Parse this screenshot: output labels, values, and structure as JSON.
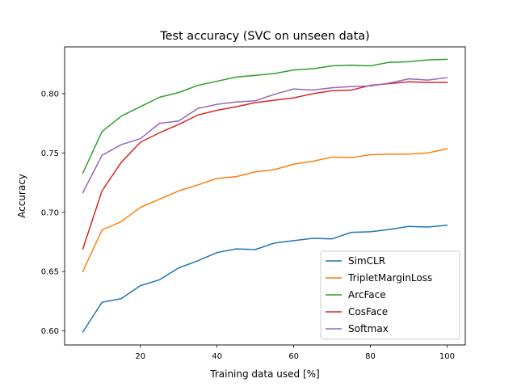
{
  "chart_data": {
    "type": "line",
    "title": "Test accuracy (SVC on unseen data)",
    "xlabel": "Training data used [%]",
    "ylabel": "Accuracy",
    "xlim": [
      0.25,
      104.75
    ],
    "ylim": [
      0.588,
      0.8395
    ],
    "xticks": [
      20,
      40,
      60,
      80,
      100
    ],
    "xtick_labels": [
      "20",
      "40",
      "60",
      "80",
      "100"
    ],
    "yticks": [
      0.6,
      0.65,
      0.7,
      0.75,
      0.8
    ],
    "ytick_labels": [
      "0.60",
      "0.65",
      "0.70",
      "0.75",
      "0.80"
    ],
    "grid": false,
    "legend_position": "bottom-right",
    "x": [
      5,
      10,
      15,
      20,
      25,
      30,
      35,
      40,
      45,
      50,
      55,
      60,
      65,
      70,
      75,
      80,
      85,
      90,
      95,
      100
    ],
    "series": [
      {
        "name": "SimCLR",
        "color": "#1f77b4",
        "values": [
          0.599,
          0.624,
          0.627,
          0.638,
          0.643,
          0.653,
          0.659,
          0.666,
          0.669,
          0.6685,
          0.674,
          0.676,
          0.678,
          0.6775,
          0.683,
          0.6835,
          0.6855,
          0.688,
          0.6875,
          0.689
        ]
      },
      {
        "name": "TripletMarginLoss",
        "color": "#ff7f0e",
        "values": [
          0.65,
          0.685,
          0.692,
          0.704,
          0.711,
          0.718,
          0.723,
          0.7285,
          0.73,
          0.734,
          0.736,
          0.7405,
          0.743,
          0.7465,
          0.746,
          0.7485,
          0.749,
          0.749,
          0.75,
          0.7535
        ]
      },
      {
        "name": "ArcFace",
        "color": "#2ca02c",
        "values": [
          0.733,
          0.768,
          0.781,
          0.789,
          0.797,
          0.801,
          0.807,
          0.8105,
          0.814,
          0.8155,
          0.817,
          0.82,
          0.821,
          0.8235,
          0.824,
          0.8235,
          0.8265,
          0.827,
          0.8285,
          0.829
        ]
      },
      {
        "name": "CosFace",
        "color": "#d62728",
        "values": [
          0.669,
          0.718,
          0.742,
          0.759,
          0.767,
          0.774,
          0.782,
          0.786,
          0.789,
          0.7925,
          0.7945,
          0.7965,
          0.8,
          0.8025,
          0.803,
          0.807,
          0.8085,
          0.81,
          0.8095,
          0.8095
        ]
      },
      {
        "name": "Softmax",
        "color": "#9467bd",
        "values": [
          0.7165,
          0.748,
          0.757,
          0.762,
          0.775,
          0.777,
          0.7875,
          0.791,
          0.793,
          0.794,
          0.7995,
          0.804,
          0.803,
          0.805,
          0.806,
          0.8065,
          0.809,
          0.8125,
          0.8115,
          0.8135
        ]
      }
    ]
  }
}
